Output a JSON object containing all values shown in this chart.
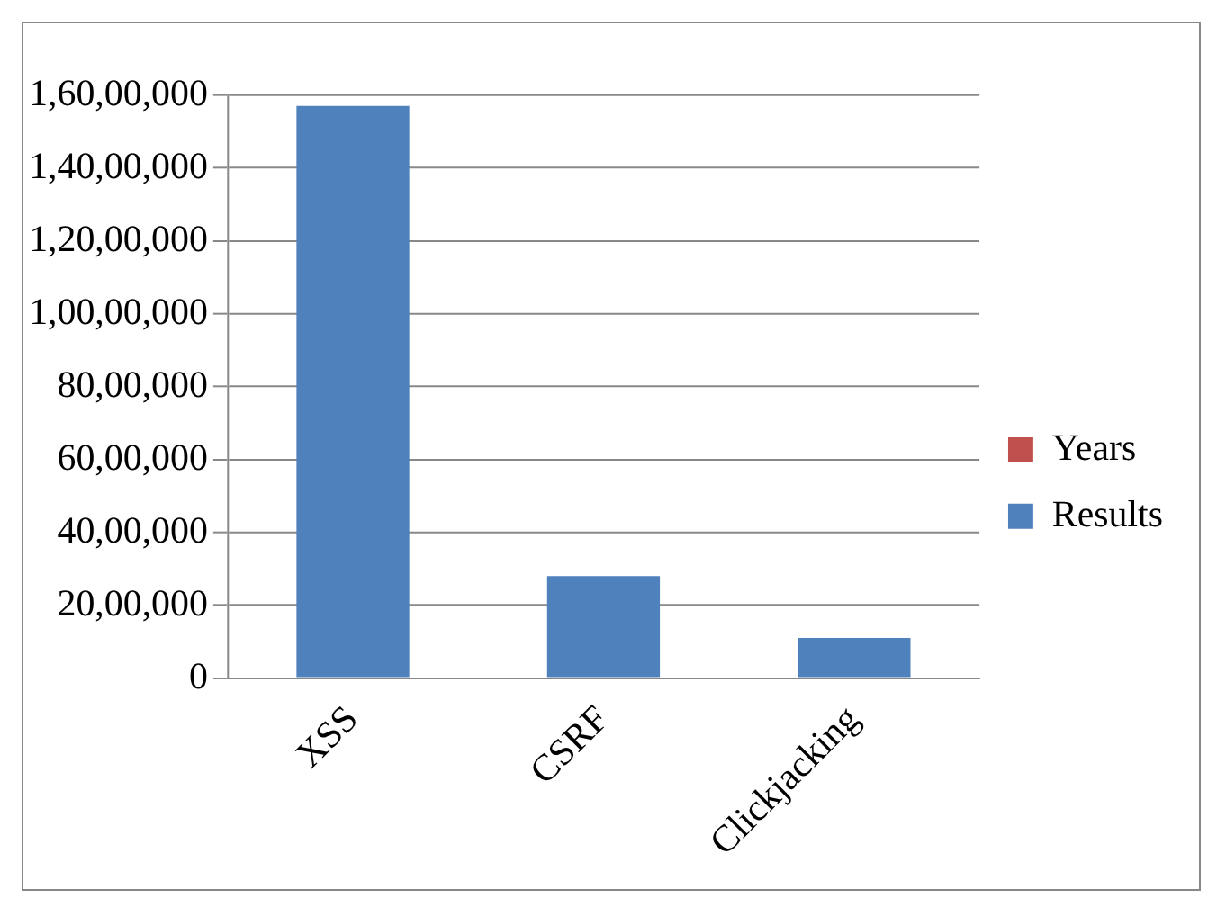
{
  "chart_data": {
    "type": "bar",
    "categories": [
      "XSS",
      "CSRF",
      "Clickjacking"
    ],
    "stacked": true,
    "series": [
      {
        "name": "Results",
        "color": "#4f81bd",
        "values": [
          15700000,
          2800000,
          1100000
        ]
      },
      {
        "name": "Years",
        "color": "#c0504d",
        "values": [
          null,
          null,
          null
        ]
      }
    ],
    "ylim": [
      0,
      16000000
    ],
    "yticks": [
      {
        "value": 0,
        "label": "0"
      },
      {
        "value": 2000000,
        "label": "20,00,000"
      },
      {
        "value": 4000000,
        "label": "40,00,000"
      },
      {
        "value": 6000000,
        "label": "60,00,000"
      },
      {
        "value": 8000000,
        "label": "80,00,000"
      },
      {
        "value": 10000000,
        "label": "1,00,00,000"
      },
      {
        "value": 12000000,
        "label": "1,20,00,000"
      },
      {
        "value": 14000000,
        "label": "1,40,00,000"
      },
      {
        "value": 16000000,
        "label": "1,60,00,000"
      }
    ],
    "grid": "y",
    "legend": "right"
  }
}
